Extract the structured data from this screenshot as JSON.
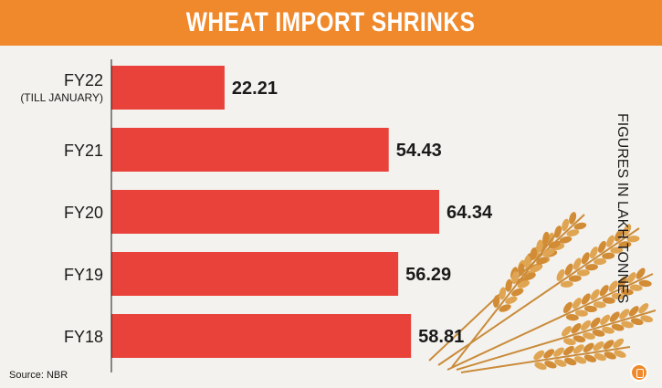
{
  "header": {
    "title": "WHEAT IMPORT SHRINKS"
  },
  "side_note": "FIGURES IN LAKH TONNES",
  "source": "Source: NBR",
  "colors": {
    "banner": "#f0892b",
    "bar": "#e8423a",
    "text": "#1a1a1a"
  },
  "chart_data": {
    "type": "bar",
    "orientation": "horizontal",
    "categories": [
      "FY22",
      "FY21",
      "FY20",
      "FY19",
      "FY18"
    ],
    "category_sublabels": [
      "(TILL JANUARY)",
      "",
      "",
      "",
      ""
    ],
    "values": [
      22.21,
      54.43,
      64.34,
      56.29,
      58.81
    ],
    "value_labels": [
      "22.21",
      "54.43",
      "64.34",
      "56.29",
      "58.81"
    ],
    "xlim": [
      0,
      80
    ],
    "grid": false,
    "legend": "none"
  }
}
